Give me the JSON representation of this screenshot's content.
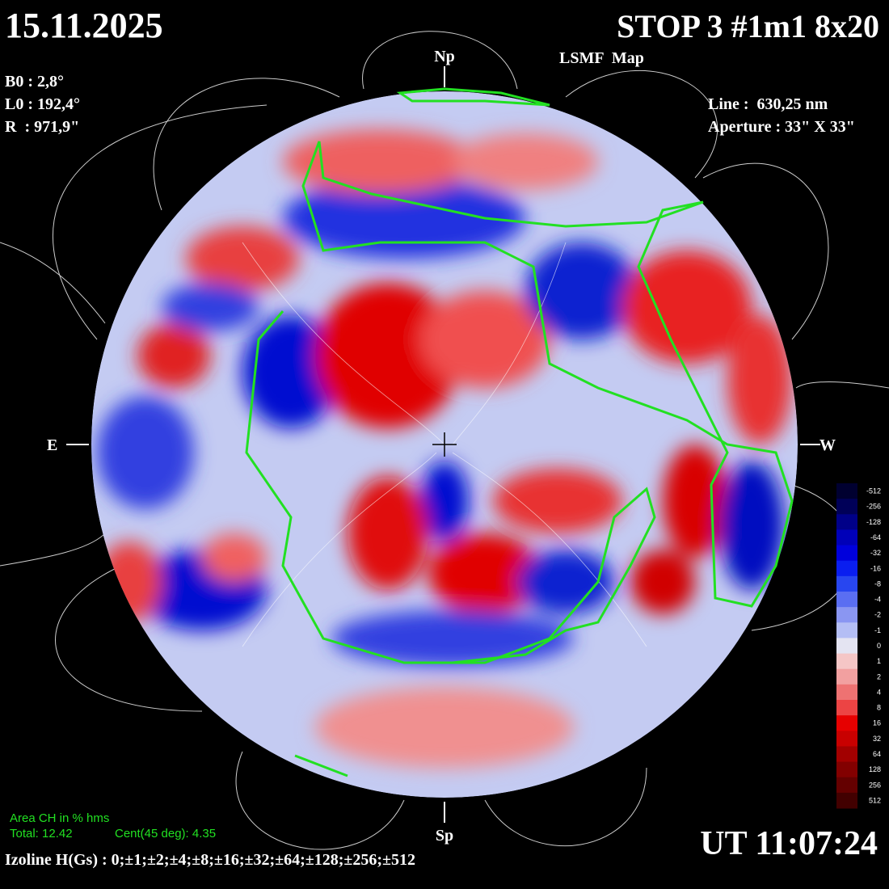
{
  "header": {
    "date": "15.11.2025",
    "station": "STOP 3 #1m1 8x20",
    "map_title": "LSMF  Map"
  },
  "params": {
    "b0": "B0 : 2,8°",
    "l0": "L0 : 192,4°",
    "r": "R  : 971,9\"",
    "line": "Line :  630,25 nm",
    "aperture": "Aperture : 33\" X 33\""
  },
  "directions": {
    "north": "Np",
    "south": "Sp",
    "east": "E",
    "west": "W"
  },
  "coronal_holes": {
    "title": "Area CH in % hms",
    "total": "Total: 12.42",
    "central": "Cent(45 deg): 4.35"
  },
  "izoline": "Izoline H(Gs) : 0;±1;±2;±4;±8;±16;±32;±64;±128;±256;±512",
  "time": "UT 11:07:24",
  "colorbar": {
    "labels": [
      "-512",
      "-256",
      "-128",
      "-64",
      "-32",
      "-16",
      "-8",
      "-4",
      "-2",
      "-1",
      "0",
      "1",
      "2",
      "4",
      "8",
      "16",
      "32",
      "64",
      "128",
      "256",
      "512"
    ],
    "colors": [
      "#000030",
      "#000058",
      "#000088",
      "#0000b8",
      "#0000dc",
      "#0a1ef0",
      "#2846f0",
      "#5a6ef2",
      "#8a96f2",
      "#b4bef5",
      "#e4e4f2",
      "#f5c6c6",
      "#f2a0a0",
      "#ee7272",
      "#ec4444",
      "#e60000",
      "#c80000",
      "#a20000",
      "#820000",
      "#640000",
      "#420000"
    ]
  }
}
